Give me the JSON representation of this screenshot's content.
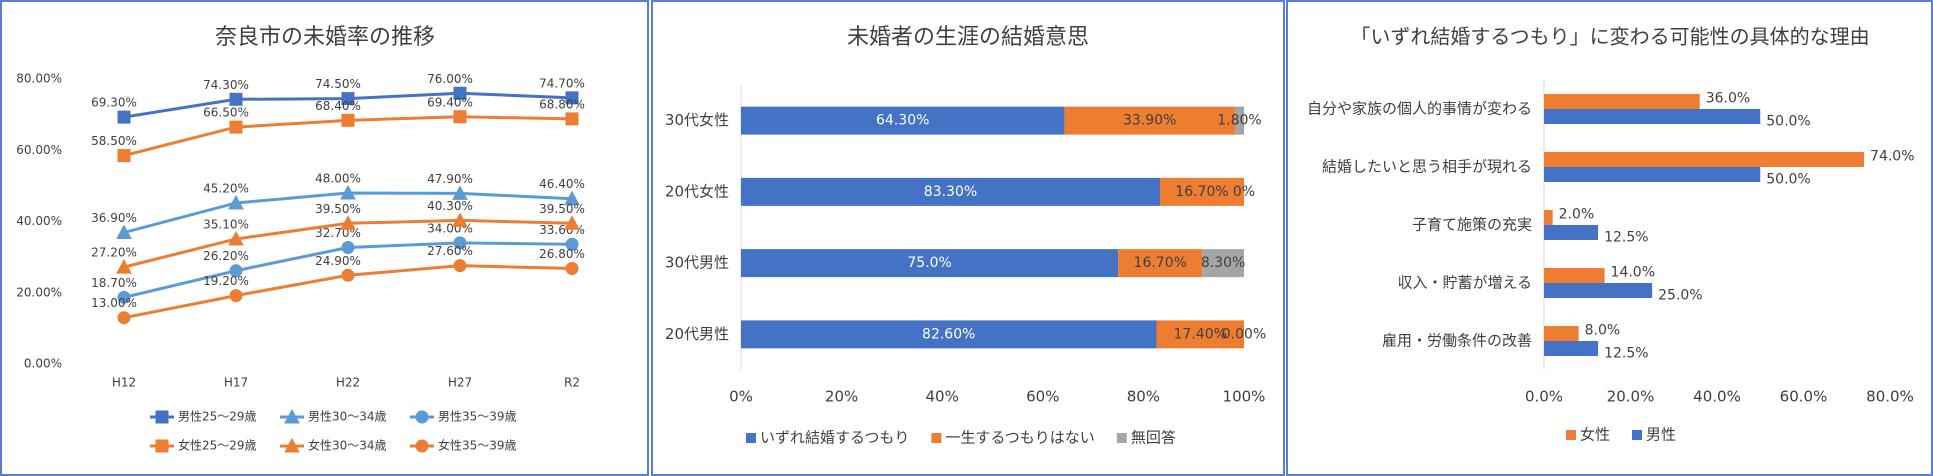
{
  "chart_data": [
    {
      "type": "line",
      "title": "奈良市の未婚率の推移",
      "categories": [
        "H12",
        "H17",
        "H22",
        "H27",
        "R2"
      ],
      "ylim": [
        0,
        80
      ],
      "yticks": [
        {
          "value": 0,
          "label": "0.00%"
        },
        {
          "value": 20,
          "label": "20.00%"
        },
        {
          "value": 40,
          "label": "40.00%"
        },
        {
          "value": 60,
          "label": "60.00%"
        },
        {
          "value": 80,
          "label": "80.00%"
        }
      ],
      "grid": false,
      "legend": "bottom",
      "series": [
        {
          "name": "男性25～29歳",
          "color": "#4472c4",
          "marker": "square",
          "values": [
            69.3,
            74.3,
            74.5,
            76.0,
            74.7
          ],
          "value_labels": [
            "69.30%",
            "74.30%",
            "74.50%",
            "76.00%",
            "74.70%"
          ]
        },
        {
          "name": "男性30～34歳",
          "color": "#5b9bd5",
          "marker": "triangle",
          "values": [
            36.9,
            45.2,
            48.0,
            47.9,
            46.4
          ],
          "value_labels": [
            "36.90%",
            "45.20%",
            "48.00%",
            "47.90%",
            "46.40%"
          ]
        },
        {
          "name": "男性35～39歳",
          "color": "#5b9bd5",
          "marker": "circle",
          "values": [
            18.7,
            26.2,
            32.7,
            34.0,
            33.6
          ],
          "value_labels": [
            "18.70%",
            "26.20%",
            "32.70%",
            "34.00%",
            "33.60%"
          ]
        },
        {
          "name": "女性25～29歳",
          "color": "#ed7d31",
          "marker": "square",
          "values": [
            58.5,
            66.5,
            68.4,
            69.4,
            68.8
          ],
          "value_labels": [
            "58.50%",
            "66.50%",
            "68.40%",
            "69.40%",
            "68.80%"
          ]
        },
        {
          "name": "女性30～34歳",
          "color": "#ed7d31",
          "marker": "triangle",
          "values": [
            27.2,
            35.1,
            39.5,
            40.3,
            39.5
          ],
          "value_labels": [
            "27.20%",
            "35.10%",
            "39.50%",
            "40.30%",
            "39.50%"
          ]
        },
        {
          "name": "女性35～39歳",
          "color": "#ed7d31",
          "marker": "circle",
          "values": [
            13.0,
            19.2,
            24.9,
            27.6,
            26.8
          ],
          "value_labels": [
            "13.00%",
            "19.20%",
            "24.90%",
            "27.60%",
            "26.80%"
          ]
        }
      ]
    },
    {
      "type": "bar",
      "orientation": "horizontal",
      "stacked": true,
      "title": "未婚者の生涯の結婚意思",
      "categories": [
        "30代女性",
        "20代女性",
        "30代男性",
        "20代男性"
      ],
      "xlim": [
        0,
        100
      ],
      "xticks": [
        {
          "value": 0,
          "label": "0%"
        },
        {
          "value": 20,
          "label": "20%"
        },
        {
          "value": 40,
          "label": "40%"
        },
        {
          "value": 60,
          "label": "60%"
        },
        {
          "value": 80,
          "label": "80%"
        },
        {
          "value": 100,
          "label": "100%"
        }
      ],
      "grid": false,
      "legend": "bottom",
      "series": [
        {
          "name": "いずれ結婚するつもり",
          "color": "#4472c4",
          "values": [
            64.3,
            83.3,
            75.0,
            82.6
          ],
          "value_labels": [
            "64.30%",
            "83.30%",
            "75.0%",
            "82.60%"
          ]
        },
        {
          "name": "一生するつもりはない",
          "color": "#ed7d31",
          "values": [
            33.9,
            16.7,
            16.7,
            17.4
          ],
          "value_labels": [
            "33.90%",
            "16.70%",
            "16.70%",
            "17.40%"
          ]
        },
        {
          "name": "無回答",
          "color": "#a5a5a5",
          "values": [
            1.8,
            0,
            8.3,
            0
          ],
          "value_labels": [
            "1.80%",
            "0%",
            "8.30%",
            "0.00%"
          ]
        }
      ]
    },
    {
      "type": "bar",
      "orientation": "horizontal",
      "stacked": false,
      "title": "「いずれ結婚するつもり」に変わる可能性の具体的な理由",
      "categories": [
        "自分や家族の個人的事情が変わる",
        "結婚したいと思う相手が現れる",
        "子育て施策の充実",
        "収入・貯蓄が増える",
        "雇用・労働条件の改善"
      ],
      "xlim": [
        0,
        80
      ],
      "xticks": [
        {
          "value": 0,
          "label": "0.0%"
        },
        {
          "value": 20,
          "label": "20.0%"
        },
        {
          "value": 40,
          "label": "40.0%"
        },
        {
          "value": 60,
          "label": "60.0%"
        },
        {
          "value": 80,
          "label": "80.0%"
        }
      ],
      "grid": false,
      "legend": "bottom",
      "series": [
        {
          "name": "女性",
          "color": "#ed7d31",
          "values": [
            36.0,
            74.0,
            2.0,
            14.0,
            8.0
          ],
          "value_labels": [
            "36.0%",
            "74.0%",
            "2.0%",
            "14.0%",
            "8.0%"
          ]
        },
        {
          "name": "男性",
          "color": "#4472c4",
          "values": [
            50.0,
            50.0,
            12.5,
            25.0,
            12.5
          ],
          "value_labels": [
            "50.0%",
            "50.0%",
            "12.5%",
            "25.0%",
            "12.5%"
          ]
        }
      ]
    }
  ]
}
